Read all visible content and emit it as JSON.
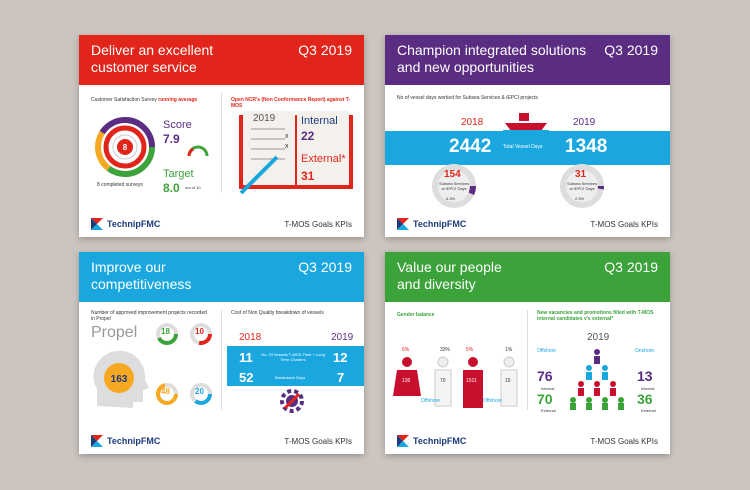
{
  "brand": {
    "logo_text": "TechnipFMC",
    "footer_label": "T-MOS Goals KPIs",
    "quarter": "Q3 2019"
  },
  "colors": {
    "red": "#e1251b",
    "purple": "#5a2d82",
    "blue": "#1aa7e0",
    "green": "#3ba33a",
    "navy": "#1d3b7a"
  },
  "cards": {
    "customer": {
      "title": "Deliver an excellent\ncustomer service",
      "survey_label": "Customer Satisfaction Survey",
      "survey_highlight": "running average",
      "score_label": "Score",
      "score_value": "7.9",
      "target_label": "Target",
      "target_value": "8.0",
      "target_suffix": "out of 10",
      "target_ring": "8",
      "completed": "8 completed surveys",
      "ncr_label": "Open NCR's (Non Conformance Report) against T-MOS",
      "book_year": "2019",
      "internal_label": "Internal",
      "internal_value": "22",
      "external_label": "External*",
      "external_value": "31"
    },
    "solutions": {
      "title": "Champion integrated solutions\nand new opportunities",
      "vessel_label": "No of vessel days worked for Subsea Services & iEPCI projects",
      "year_left": "2018",
      "year_right": "2019",
      "days_left": "2442",
      "days_right": "1348",
      "days_caption": "Total Vessel Days",
      "sub_left_value": "154",
      "sub_left_label": "Subsea Services or iEPCI Days",
      "sub_left_pct": "6.3%",
      "sub_right_value": "31",
      "sub_right_label": "Subsea Services or iEPCI Days",
      "sub_right_pct": "2.3%"
    },
    "competitive": {
      "title": "Improve our\ncompetitiveness",
      "projects_label": "Number of approved improvement projects recorded in Propel",
      "propel": "Propel",
      "bulb_value": "163",
      "stats": [
        {
          "value": "18",
          "label": "Ideas"
        },
        {
          "value": "10",
          "label": "Ideas"
        },
        {
          "value": "48",
          "label": "Ideas"
        },
        {
          "value": "20",
          "label": "Ideas"
        }
      ],
      "cost_label": "Cost of Non Quality breakdown of vessels",
      "year_left": "2018",
      "year_right": "2019",
      "fleet_left": "11",
      "fleet_right": "12",
      "fleet_caption": "No. Of Vessels T-MOS Fleet + Long Term Charters",
      "breakdown_left": "52",
      "breakdown_right": "7",
      "breakdown_caption": "Breakdown Days"
    },
    "people": {
      "title": "Value our people\nand diversity",
      "gender_label": "Gender balance",
      "figures": [
        {
          "pct": "6%",
          "count": "136",
          "group": "Offshore"
        },
        {
          "pct": "33%",
          "count": "70",
          "group": ""
        },
        {
          "pct": "5%",
          "count": "1511",
          "group": "Offshore"
        },
        {
          "pct": "1%",
          "count": "15",
          "group": ""
        }
      ],
      "vacancies_label": "New vacancies and promotions filled with T-MOS internal candidates v's external*",
      "year": "2019",
      "left_group": "Offshore",
      "left_internal": "76",
      "left_external": "70",
      "right_group": "Onshore",
      "right_internal": "13",
      "right_external": "36",
      "internal_word": "Internal",
      "external_word": "External"
    }
  }
}
